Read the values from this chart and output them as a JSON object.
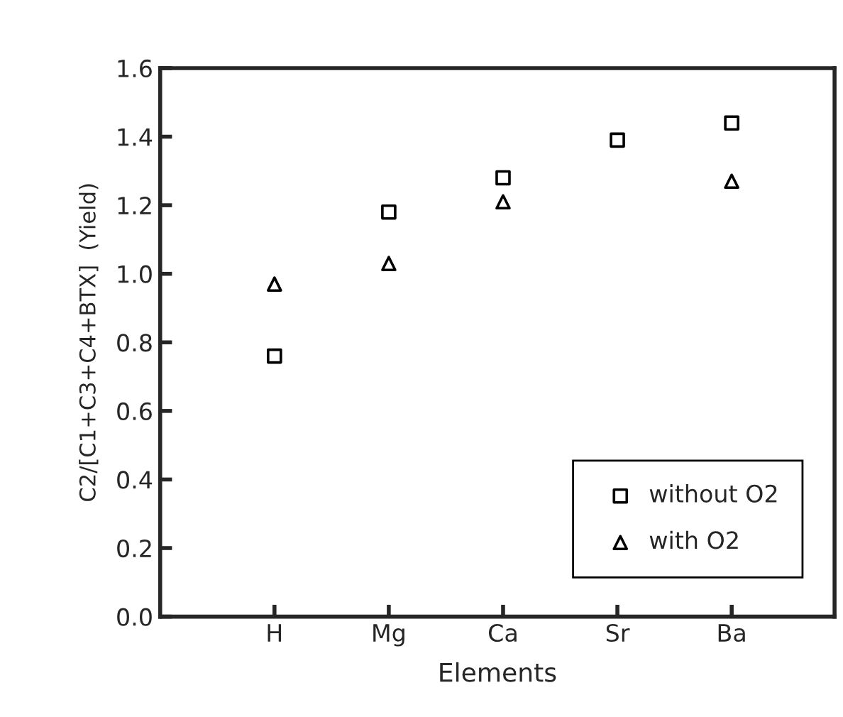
{
  "chart_data": {
    "type": "scatter",
    "xlabel": "Elements",
    "ylabel": "C2/[C1+C3+C4+BTX]  (Yield)",
    "categories": [
      "H",
      "Mg",
      "Ca",
      "Sr",
      "Ba"
    ],
    "series": [
      {
        "name": "without O2",
        "color": "#000000",
        "marker": "square",
        "values": [
          0.76,
          1.18,
          1.28,
          1.39,
          1.44
        ]
      },
      {
        "name": "with O2",
        "color": "#000000",
        "marker": "triangle",
        "values": [
          0.97,
          1.03,
          1.21,
          null,
          1.27
        ]
      }
    ],
    "ylim": [
      0,
      1.6
    ],
    "yticks": [
      {
        "value": 0,
        "label": "0.0"
      },
      {
        "value": 0.2,
        "label": "0.2"
      },
      {
        "value": 0.4,
        "label": "0.4"
      },
      {
        "value": 0.6,
        "label": "0.6"
      },
      {
        "value": 0.8,
        "label": "0.8"
      },
      {
        "value": 1.0,
        "label": "1.0"
      },
      {
        "value": 1.2,
        "label": "1.2"
      },
      {
        "value": 1.4,
        "label": "1.4"
      },
      {
        "value": 1.6,
        "label": "1.6"
      }
    ],
    "grid": false,
    "legend": "lower right"
  }
}
